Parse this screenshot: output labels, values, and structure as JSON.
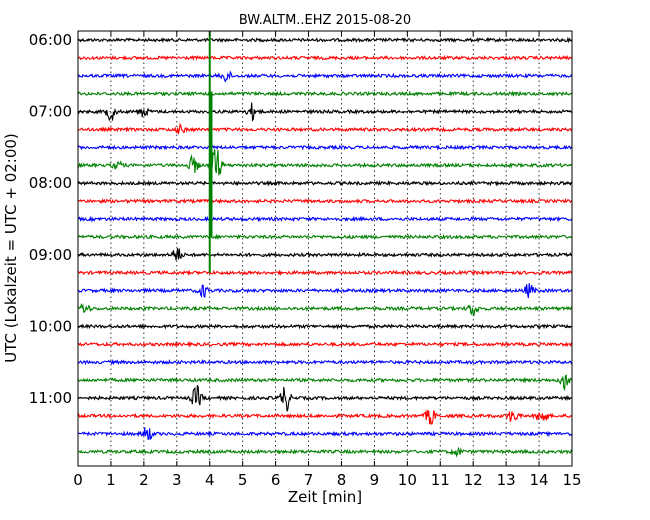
{
  "chart_data": {
    "type": "line",
    "title": "BW.ALTM..EHZ 2015-08-20",
    "xlabel": "Zeit  [min]",
    "ylabel": "UTC (Lokalzeit = UTC + 02:00)",
    "xlim": [
      0,
      15
    ],
    "x_ticks": [
      "0",
      "1",
      "2",
      "3",
      "4",
      "5",
      "6",
      "7",
      "8",
      "9",
      "10",
      "11",
      "12",
      "13",
      "14",
      "15"
    ],
    "y_ticks": [
      "06:00",
      "07:00",
      "08:00",
      "09:00",
      "10:00",
      "11:00"
    ],
    "grid": true,
    "rows": [
      {
        "time": "06:00",
        "color": "#000000",
        "events": []
      },
      {
        "time": "06:15",
        "color": "#ff0000",
        "events": []
      },
      {
        "time": "06:30",
        "color": "#0000ff",
        "events": [
          {
            "x": 4.5,
            "amp": 6
          }
        ]
      },
      {
        "time": "06:45",
        "color": "#008000",
        "events": []
      },
      {
        "time": "07:00",
        "color": "#000000",
        "events": [
          {
            "x": 1.0,
            "amp": 9
          },
          {
            "x": 2.0,
            "amp": 5
          },
          {
            "x": 5.3,
            "amp": 8
          }
        ]
      },
      {
        "time": "07:15",
        "color": "#ff0000",
        "events": [
          {
            "x": 3.1,
            "amp": 4
          }
        ]
      },
      {
        "time": "07:30",
        "color": "#0000ff",
        "events": []
      },
      {
        "time": "07:45",
        "color": "#008000",
        "events": [
          {
            "x": 1.2,
            "amp": 4
          },
          {
            "x": 3.5,
            "amp": 9
          },
          {
            "x": 4.2,
            "amp": 20
          }
        ]
      },
      {
        "time": "08:00",
        "color": "#000000",
        "events": []
      },
      {
        "time": "08:15",
        "color": "#ff0000",
        "events": []
      },
      {
        "time": "08:30",
        "color": "#0000ff",
        "events": []
      },
      {
        "time": "08:45",
        "color": "#008000",
        "events": []
      },
      {
        "time": "09:00",
        "color": "#000000",
        "events": [
          {
            "x": 3.0,
            "amp": 8
          }
        ]
      },
      {
        "time": "09:15",
        "color": "#ff0000",
        "events": []
      },
      {
        "time": "09:30",
        "color": "#0000ff",
        "events": [
          {
            "x": 3.8,
            "amp": 6
          },
          {
            "x": 13.7,
            "amp": 7
          }
        ]
      },
      {
        "time": "09:45",
        "color": "#008000",
        "events": [
          {
            "x": 0.2,
            "amp": 5
          },
          {
            "x": 12.0,
            "amp": 7
          }
        ]
      },
      {
        "time": "10:00",
        "color": "#000000",
        "events": []
      },
      {
        "time": "10:15",
        "color": "#ff0000",
        "events": []
      },
      {
        "time": "10:30",
        "color": "#0000ff",
        "events": []
      },
      {
        "time": "10:45",
        "color": "#008000",
        "events": [
          {
            "x": 14.8,
            "amp": 10
          }
        ]
      },
      {
        "time": "11:00",
        "color": "#000000",
        "events": [
          {
            "x": 3.6,
            "amp": 12
          },
          {
            "x": 6.3,
            "amp": 14
          }
        ]
      },
      {
        "time": "11:15",
        "color": "#ff0000",
        "events": [
          {
            "x": 10.7,
            "amp": 9
          },
          {
            "x": 13.2,
            "amp": 7
          },
          {
            "x": 14.1,
            "amp": 9
          }
        ]
      },
      {
        "time": "11:30",
        "color": "#0000ff",
        "events": [
          {
            "x": 2.1,
            "amp": 8
          }
        ]
      },
      {
        "time": "11:45",
        "color": "#008000",
        "events": [
          {
            "x": 11.5,
            "amp": 4
          }
        ]
      }
    ],
    "spike": {
      "x": 4.0,
      "from_row": 0,
      "to_row": 13,
      "color": "#008000"
    }
  }
}
